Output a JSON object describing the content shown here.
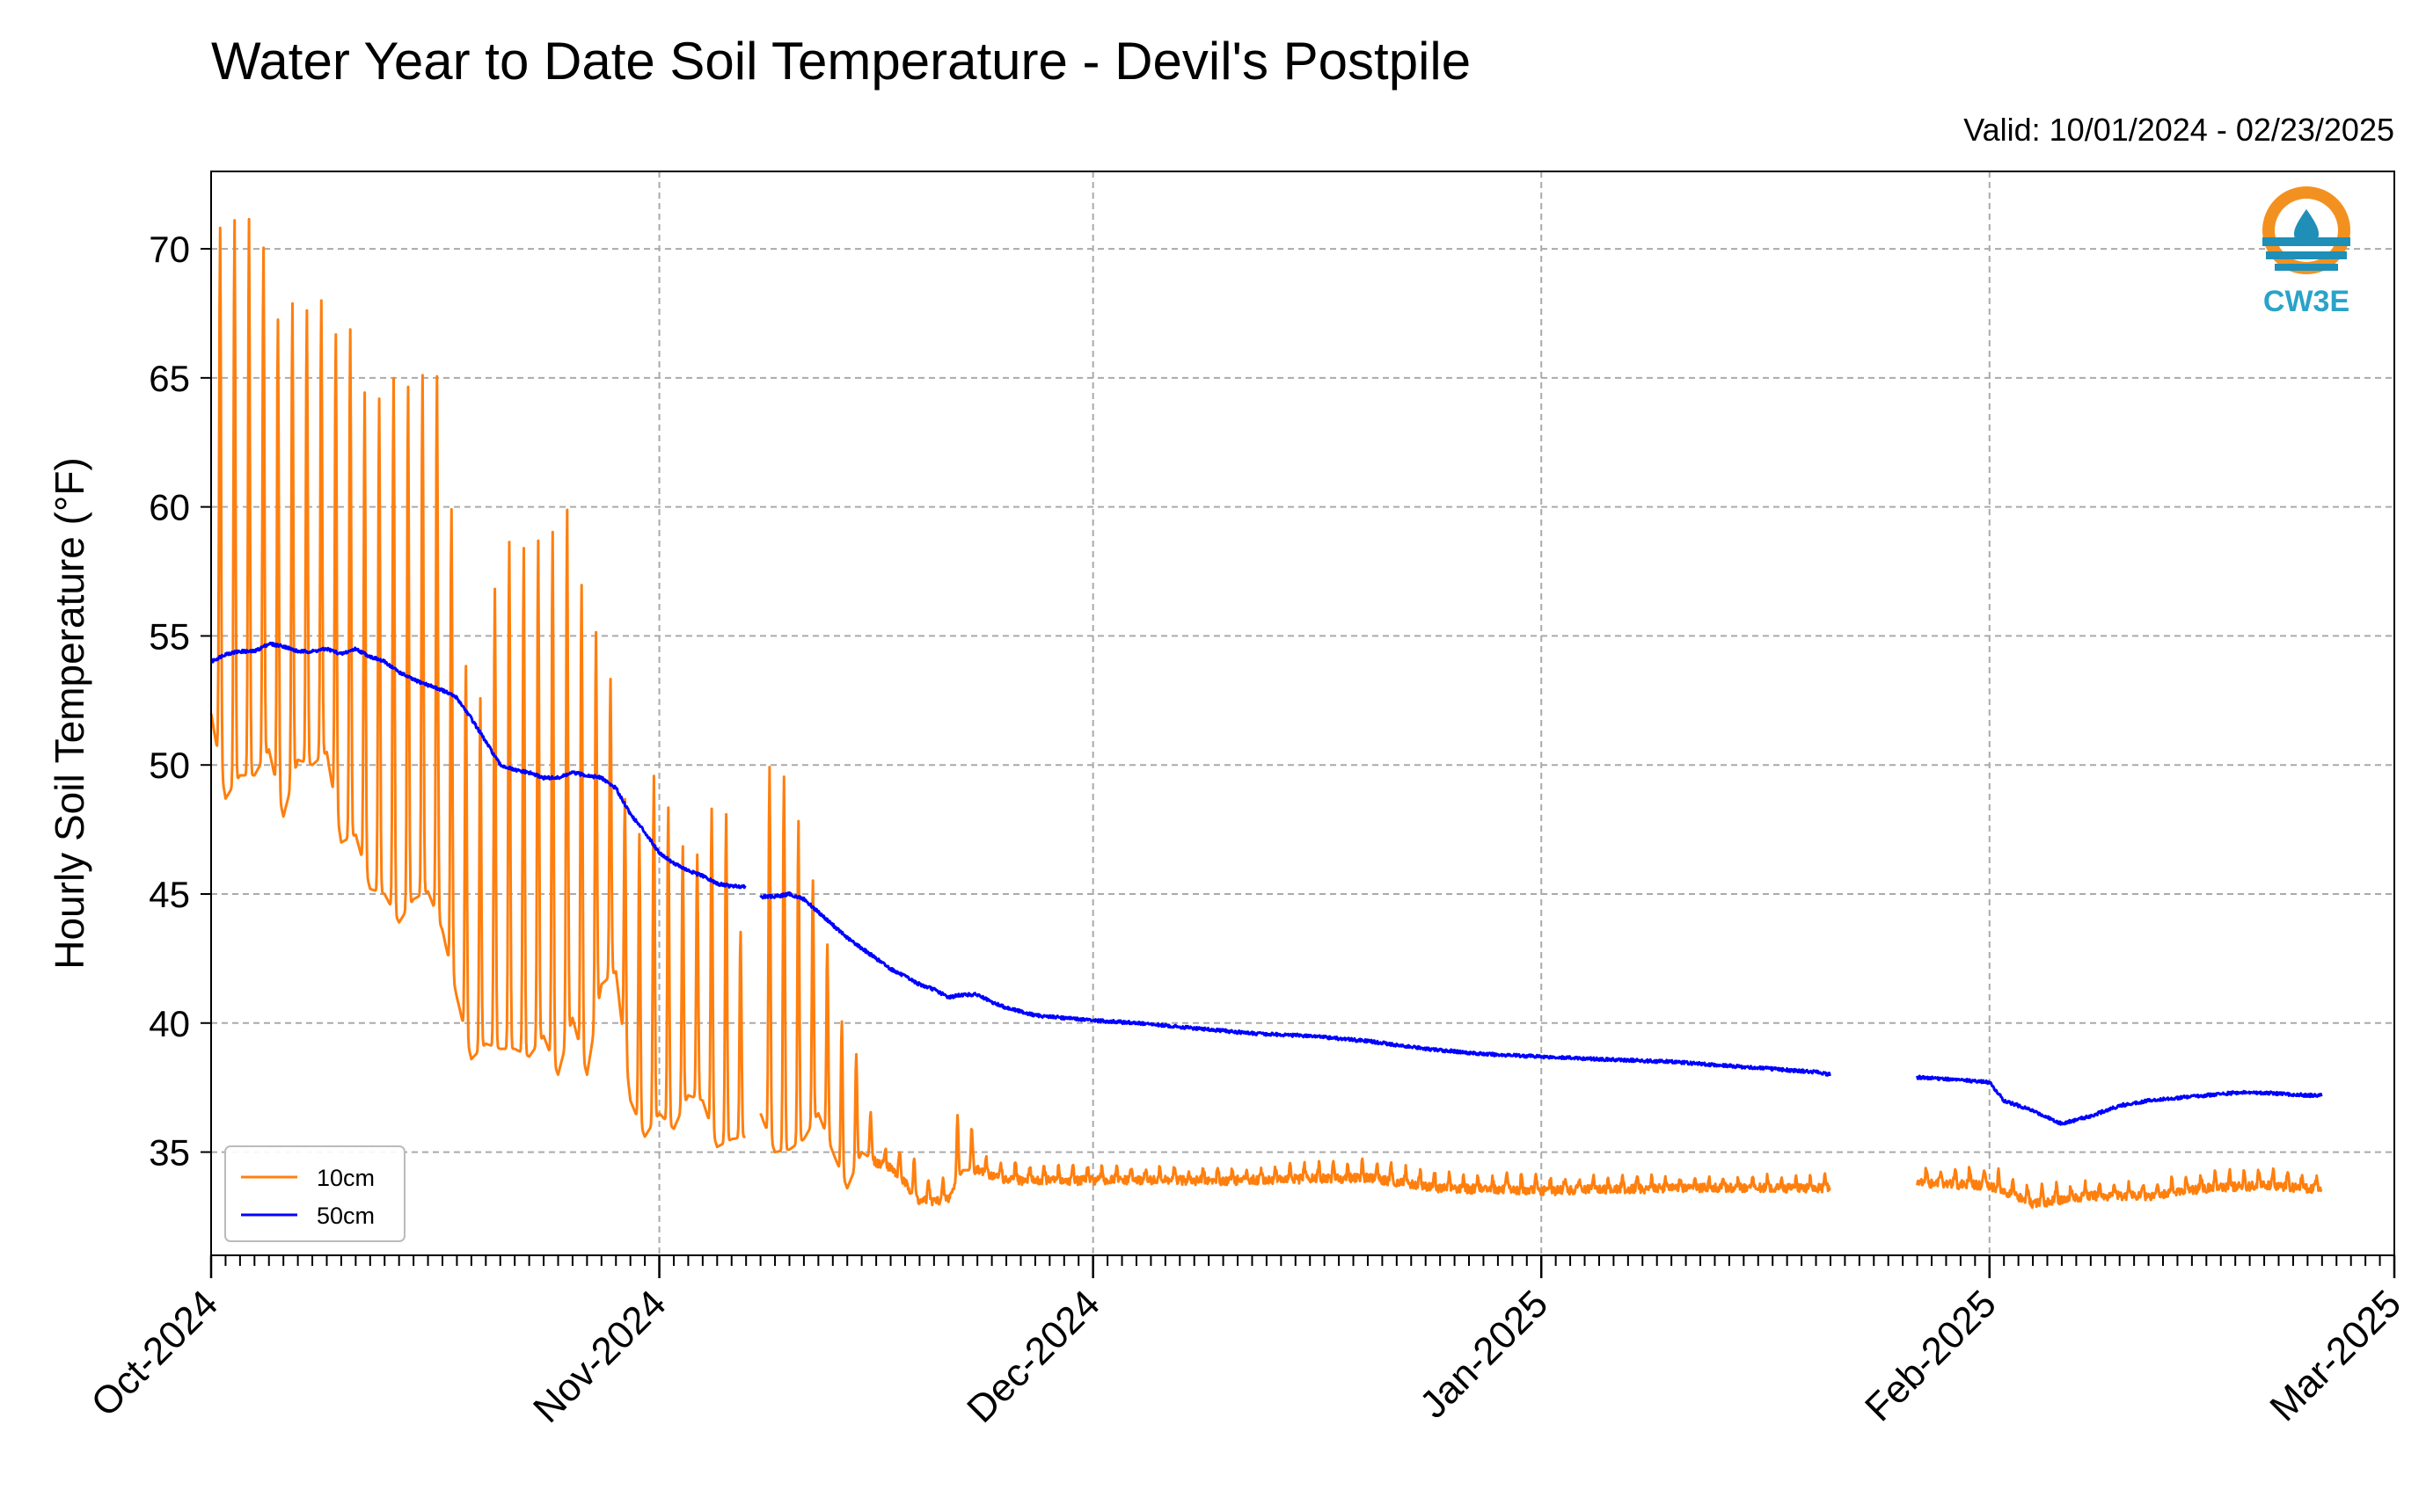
{
  "chart_data": {
    "type": "line",
    "title": "Water Year to Date Soil Temperature - Devil's Postpile",
    "subtitle": "Valid: 10/01/2024 - 02/23/2025",
    "xlabel": "",
    "ylabel": "Hourly Soil Temperature ( $^\\circ$F)",
    "ylabel_display": "Hourly Soil Temperature (°F)",
    "ylim": [
      31,
      73
    ],
    "yticks": [
      35,
      40,
      45,
      50,
      55,
      60,
      65,
      70
    ],
    "x_axis": {
      "type": "date",
      "start": "2024-10-01",
      "end": "2025-03-01",
      "major_ticks": [
        {
          "date": "2024-10-01",
          "label": "Oct-2024"
        },
        {
          "date": "2024-11-01",
          "label": "Nov-2024"
        },
        {
          "date": "2024-12-01",
          "label": "Dec-2024"
        },
        {
          "date": "2025-01-01",
          "label": "Jan-2025"
        },
        {
          "date": "2025-02-01",
          "label": "Feb-2025"
        },
        {
          "date": "2025-03-01",
          "label": "Mar-2025"
        }
      ],
      "minor_ticks": "daily"
    },
    "grid": true,
    "legend": "lower-left",
    "series": [
      {
        "name": "10cm",
        "color": "#ff7f0e",
        "diurnal_cycle": true,
        "daily_max": [
          [
            "2024-10-01",
            71.0
          ],
          [
            "2024-10-02",
            70.8
          ],
          [
            "2024-10-03",
            71.4
          ],
          [
            "2024-10-04",
            71.1
          ],
          [
            "2024-10-05",
            69.5
          ],
          [
            "2024-10-06",
            66.0
          ],
          [
            "2024-10-07",
            69.1
          ],
          [
            "2024-10-08",
            66.8
          ],
          [
            "2024-10-09",
            68.8
          ],
          [
            "2024-10-10",
            65.5
          ],
          [
            "2024-10-11",
            67.8
          ],
          [
            "2024-10-12",
            62.5
          ],
          [
            "2024-10-13",
            65.3
          ],
          [
            "2024-10-14",
            64.9
          ],
          [
            "2024-10-15",
            64.6
          ],
          [
            "2024-10-16",
            65.5
          ],
          [
            "2024-10-17",
            64.9
          ],
          [
            "2024-10-18",
            57.0
          ],
          [
            "2024-10-19",
            52.0
          ],
          [
            "2024-10-20",
            53.0
          ],
          [
            "2024-10-21",
            59.2
          ],
          [
            "2024-10-22",
            58.4
          ],
          [
            "2024-10-23",
            58.5
          ],
          [
            "2024-10-24",
            58.9
          ],
          [
            "2024-10-25",
            59.2
          ],
          [
            "2024-10-26",
            60.4
          ],
          [
            "2024-10-27",
            55.0
          ],
          [
            "2024-10-28",
            55.3
          ],
          [
            "2024-10-29",
            52.2
          ],
          [
            "2024-10-30",
            46.6
          ],
          [
            "2024-10-31",
            47.8
          ],
          [
            "2024-11-01",
            50.7
          ],
          [
            "2024-11-02",
            47.0
          ],
          [
            "2024-11-03",
            46.8
          ],
          [
            "2024-11-04",
            46.4
          ],
          [
            "2024-11-05",
            49.5
          ],
          [
            "2024-11-06",
            47.3
          ],
          [
            "2024-11-07",
            41.3
          ],
          [
            "2024-11-08",
            48.4
          ],
          [
            "2024-11-09",
            50.9
          ],
          [
            "2024-11-10",
            48.8
          ],
          [
            "2024-11-11",
            47.3
          ],
          [
            "2024-11-12",
            44.5
          ],
          [
            "2024-11-13",
            42.2
          ],
          [
            "2024-11-14",
            38.8
          ],
          [
            "2024-11-15",
            38.8
          ],
          [
            "2024-11-16",
            35.3
          ],
          [
            "2024-11-17",
            35.2
          ],
          [
            "2024-11-18",
            35.0
          ],
          [
            "2024-11-19",
            34.6
          ],
          [
            "2024-11-20",
            33.6
          ],
          [
            "2024-11-21",
            34.0
          ],
          [
            "2024-11-22",
            37.9
          ],
          [
            "2024-11-23",
            34.8
          ],
          [
            "2024-11-24",
            34.6
          ],
          [
            "2024-11-25",
            34.6
          ],
          [
            "2024-11-27",
            34.4
          ],
          [
            "2024-12-01",
            34.4
          ],
          [
            "2024-12-10",
            34.3
          ],
          [
            "2024-12-20",
            34.6
          ],
          [
            "2024-12-25",
            34.1
          ],
          [
            "2025-01-01",
            34.0
          ],
          [
            "2025-01-10",
            34.0
          ],
          [
            "2025-01-20",
            34.0
          ],
          [
            "2025-01-25",
            34.1
          ],
          [
            "2025-01-27",
            34.3
          ],
          [
            "2025-02-01",
            34.4
          ],
          [
            "2025-02-04",
            33.6
          ],
          [
            "2025-02-08",
            33.8
          ],
          [
            "2025-02-12",
            33.8
          ],
          [
            "2025-02-16",
            34.2
          ],
          [
            "2025-02-20",
            34.3
          ],
          [
            "2025-02-23",
            34.0
          ]
        ],
        "daily_min": [
          [
            "2024-10-01",
            52.0
          ],
          [
            "2024-10-02",
            48.7
          ],
          [
            "2024-10-03",
            49.6
          ],
          [
            "2024-10-04",
            49.6
          ],
          [
            "2024-10-05",
            50.6
          ],
          [
            "2024-10-06",
            48.0
          ],
          [
            "2024-10-07",
            50.2
          ],
          [
            "2024-10-08",
            50.0
          ],
          [
            "2024-10-09",
            50.5
          ],
          [
            "2024-10-10",
            47.0
          ],
          [
            "2024-10-11",
            47.3
          ],
          [
            "2024-10-12",
            45.2
          ],
          [
            "2024-10-13",
            45.0
          ],
          [
            "2024-10-14",
            43.9
          ],
          [
            "2024-10-15",
            44.8
          ],
          [
            "2024-10-16",
            45.1
          ],
          [
            "2024-10-17",
            43.6
          ],
          [
            "2024-10-18",
            41.0
          ],
          [
            "2024-10-19",
            38.6
          ],
          [
            "2024-10-20",
            39.2
          ],
          [
            "2024-10-21",
            39.0
          ],
          [
            "2024-10-22",
            39.0
          ],
          [
            "2024-10-23",
            38.7
          ],
          [
            "2024-10-24",
            39.5
          ],
          [
            "2024-10-25",
            38.0
          ],
          [
            "2024-10-26",
            40.2
          ],
          [
            "2024-10-27",
            38.0
          ],
          [
            "2024-10-28",
            41.5
          ],
          [
            "2024-10-29",
            42.0
          ],
          [
            "2024-10-30",
            37.0
          ],
          [
            "2024-10-31",
            35.6
          ],
          [
            "2024-11-01",
            36.5
          ],
          [
            "2024-11-02",
            35.9
          ],
          [
            "2024-11-03",
            37.2
          ],
          [
            "2024-11-04",
            37.0
          ],
          [
            "2024-11-05",
            35.2
          ],
          [
            "2024-11-06",
            35.5
          ],
          [
            "2024-11-07",
            35.6
          ],
          [
            "2024-11-08",
            36.5
          ],
          [
            "2024-11-09",
            35.0
          ],
          [
            "2024-11-10",
            35.1
          ],
          [
            "2024-11-11",
            35.5
          ],
          [
            "2024-11-12",
            36.5
          ],
          [
            "2024-11-13",
            35.0
          ],
          [
            "2024-11-14",
            33.6
          ],
          [
            "2024-11-15",
            35.0
          ],
          [
            "2024-11-16",
            34.6
          ],
          [
            "2024-11-17",
            34.4
          ],
          [
            "2024-11-18",
            33.8
          ],
          [
            "2024-11-19",
            33.1
          ],
          [
            "2024-11-20",
            33.1
          ],
          [
            "2024-11-21",
            33.2
          ],
          [
            "2024-11-22",
            34.3
          ],
          [
            "2024-11-23",
            34.3
          ],
          [
            "2024-11-24",
            34.1
          ],
          [
            "2024-11-25",
            33.9
          ],
          [
            "2024-11-27",
            33.9
          ],
          [
            "2024-12-01",
            33.9
          ],
          [
            "2024-12-10",
            33.9
          ],
          [
            "2024-12-20",
            34.0
          ],
          [
            "2024-12-25",
            33.6
          ],
          [
            "2025-01-01",
            33.5
          ],
          [
            "2025-01-10",
            33.6
          ],
          [
            "2025-01-20",
            33.6
          ],
          [
            "2025-01-25",
            33.6
          ],
          [
            "2025-01-27",
            33.8
          ],
          [
            "2025-02-01",
            33.7
          ],
          [
            "2025-02-04",
            33.0
          ],
          [
            "2025-02-08",
            33.3
          ],
          [
            "2025-02-12",
            33.3
          ],
          [
            "2025-02-16",
            33.6
          ],
          [
            "2025-02-20",
            33.7
          ],
          [
            "2025-02-23",
            33.6
          ]
        ],
        "gaps": [
          [
            "2024-11-07",
            "2024-11-08"
          ],
          [
            "2025-01-21",
            "2025-01-27"
          ]
        ]
      },
      {
        "name": "50cm",
        "color": "#0000ff",
        "points": [
          [
            "2024-10-01",
            54.0
          ],
          [
            "2024-10-02",
            54.3
          ],
          [
            "2024-10-03",
            54.4
          ],
          [
            "2024-10-04",
            54.4
          ],
          [
            "2024-10-05",
            54.7
          ],
          [
            "2024-10-06",
            54.6
          ],
          [
            "2024-10-07",
            54.4
          ],
          [
            "2024-10-08",
            54.4
          ],
          [
            "2024-10-09",
            54.5
          ],
          [
            "2024-10-10",
            54.3
          ],
          [
            "2024-10-11",
            54.5
          ],
          [
            "2024-10-12",
            54.2
          ],
          [
            "2024-10-13",
            54.0
          ],
          [
            "2024-10-14",
            53.6
          ],
          [
            "2024-10-15",
            53.3
          ],
          [
            "2024-10-16",
            53.1
          ],
          [
            "2024-10-17",
            52.9
          ],
          [
            "2024-10-18",
            52.6
          ],
          [
            "2024-10-19",
            51.8
          ],
          [
            "2024-10-20",
            50.9
          ],
          [
            "2024-10-21",
            50.0
          ],
          [
            "2024-10-22",
            49.8
          ],
          [
            "2024-10-23",
            49.7
          ],
          [
            "2024-10-24",
            49.5
          ],
          [
            "2024-10-25",
            49.5
          ],
          [
            "2024-10-26",
            49.7
          ],
          [
            "2024-10-27",
            49.6
          ],
          [
            "2024-10-28",
            49.5
          ],
          [
            "2024-10-29",
            49.1
          ],
          [
            "2024-10-30",
            48.1
          ],
          [
            "2024-10-31",
            47.4
          ],
          [
            "2024-11-01",
            46.6
          ],
          [
            "2024-11-02",
            46.2
          ],
          [
            "2024-11-03",
            45.9
          ],
          [
            "2024-11-04",
            45.7
          ],
          [
            "2024-11-05",
            45.4
          ],
          [
            "2024-11-06",
            45.3
          ],
          [
            "2024-11-07",
            45.3
          ],
          [
            "2024-11-08",
            44.9
          ],
          [
            "2024-11-09",
            44.9
          ],
          [
            "2024-11-10",
            45.0
          ],
          [
            "2024-11-11",
            44.8
          ],
          [
            "2024-11-12",
            44.3
          ],
          [
            "2024-11-13",
            43.8
          ],
          [
            "2024-11-14",
            43.3
          ],
          [
            "2024-11-15",
            42.9
          ],
          [
            "2024-11-16",
            42.5
          ],
          [
            "2024-11-17",
            42.1
          ],
          [
            "2024-11-18",
            41.8
          ],
          [
            "2024-11-19",
            41.5
          ],
          [
            "2024-11-20",
            41.3
          ],
          [
            "2024-11-21",
            41.0
          ],
          [
            "2024-11-22",
            41.1
          ],
          [
            "2024-11-23",
            41.1
          ],
          [
            "2024-11-24",
            40.8
          ],
          [
            "2024-11-25",
            40.6
          ],
          [
            "2024-11-27",
            40.3
          ],
          [
            "2024-12-01",
            40.1
          ],
          [
            "2024-12-04",
            40.0
          ],
          [
            "2024-12-08",
            39.8
          ],
          [
            "2024-12-12",
            39.6
          ],
          [
            "2024-12-16",
            39.5
          ],
          [
            "2024-12-20",
            39.3
          ],
          [
            "2024-12-24",
            39.0
          ],
          [
            "2024-12-28",
            38.8
          ],
          [
            "2025-01-01",
            38.7
          ],
          [
            "2025-01-05",
            38.6
          ],
          [
            "2025-01-10",
            38.5
          ],
          [
            "2025-01-15",
            38.3
          ],
          [
            "2025-01-20",
            38.1
          ],
          [
            "2025-01-21",
            38.0
          ],
          [
            "2025-01-27",
            37.9
          ],
          [
            "2025-01-30",
            37.8
          ],
          [
            "2025-02-01",
            37.7
          ],
          [
            "2025-02-02",
            37.0
          ],
          [
            "2025-02-04",
            36.6
          ],
          [
            "2025-02-06",
            36.1
          ],
          [
            "2025-02-08",
            36.4
          ],
          [
            "2025-02-10",
            36.8
          ],
          [
            "2025-02-12",
            37.0
          ],
          [
            "2025-02-14",
            37.1
          ],
          [
            "2025-02-16",
            37.2
          ],
          [
            "2025-02-18",
            37.3
          ],
          [
            "2025-02-20",
            37.3
          ],
          [
            "2025-02-23",
            37.2
          ]
        ],
        "gaps": [
          [
            "2024-11-07",
            "2024-11-08"
          ],
          [
            "2025-01-21",
            "2025-01-27"
          ]
        ]
      }
    ],
    "logo": {
      "text": "CW3E",
      "accent": "#f39120",
      "brand": "#1f8fb7"
    }
  }
}
